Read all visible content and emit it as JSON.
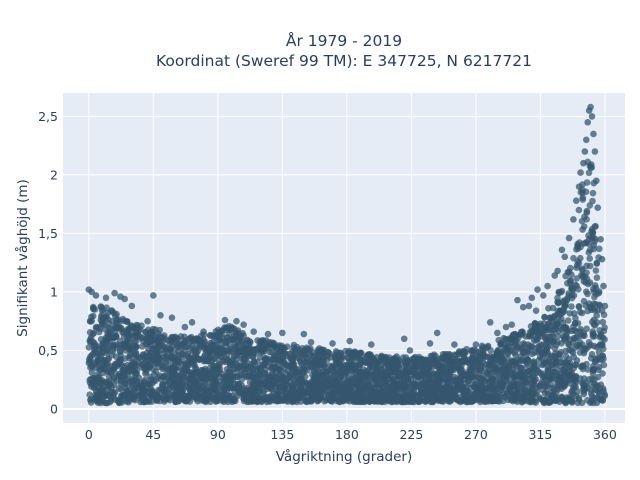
{
  "chart_data": {
    "type": "scatter",
    "title_lines": [
      "År 1979 - 2019",
      "Koordinat (Sweref 99 TM): E 347725, N 6217721"
    ],
    "xlabel": "Vågriktning (grader)",
    "ylabel": "Signifikant våghöjd (m)",
    "xlim": [
      -18,
      374
    ],
    "ylim": [
      -0.12,
      2.7
    ],
    "xticks": [
      0,
      45,
      90,
      135,
      180,
      225,
      270,
      315,
      360
    ],
    "xtick_labels": [
      "0",
      "45",
      "90",
      "135",
      "180",
      "225",
      "270",
      "315",
      "360"
    ],
    "yticks": [
      0,
      0.5,
      1,
      1.5,
      2,
      2.5
    ],
    "ytick_labels": [
      "0",
      "0,5",
      "1",
      "1,5",
      "2",
      "2,5"
    ],
    "grid": true,
    "legend": "none",
    "marker_color": "#34566d",
    "background_color": "#e5ecf6",
    "series": [
      {
        "envelope": {
          "x": [
            0,
            10,
            20,
            30,
            45,
            60,
            75,
            90,
            100,
            110,
            135,
            160,
            180,
            200,
            225,
            245,
            260,
            280,
            300,
            310,
            320,
            330,
            335,
            340,
            345,
            350,
            355,
            358,
            360
          ],
          "y_max": [
            0.95,
            0.88,
            0.82,
            0.75,
            0.7,
            0.62,
            0.62,
            0.68,
            0.72,
            0.62,
            0.56,
            0.52,
            0.5,
            0.46,
            0.44,
            0.47,
            0.5,
            0.56,
            0.66,
            0.72,
            0.85,
            1.05,
            1.25,
            1.6,
            2.05,
            2.2,
            1.6,
            1.1,
            0.7
          ],
          "y_min": [
            0.05,
            0.05,
            0.05,
            0.06,
            0.06,
            0.06,
            0.06,
            0.06,
            0.06,
            0.06,
            0.06,
            0.06,
            0.06,
            0.06,
            0.06,
            0.06,
            0.06,
            0.06,
            0.06,
            0.05,
            0.05,
            0.05,
            0.05,
            0.05,
            0.05,
            0.05,
            0.05,
            0.05,
            0.05
          ]
        },
        "outliers": [
          {
            "x": 0,
            "y": 1.02
          },
          {
            "x": 2,
            "y": 1.0
          },
          {
            "x": 5,
            "y": 0.97
          },
          {
            "x": 12,
            "y": 0.95
          },
          {
            "x": 18,
            "y": 0.99
          },
          {
            "x": 22,
            "y": 0.96
          },
          {
            "x": 25,
            "y": 0.94
          },
          {
            "x": 30,
            "y": 0.88
          },
          {
            "x": 45,
            "y": 0.97
          },
          {
            "x": 41,
            "y": 0.75
          },
          {
            "x": 50,
            "y": 0.8
          },
          {
            "x": 58,
            "y": 0.78
          },
          {
            "x": 67,
            "y": 0.7
          },
          {
            "x": 72,
            "y": 0.74
          },
          {
            "x": 80,
            "y": 0.66
          },
          {
            "x": 95,
            "y": 0.76
          },
          {
            "x": 103,
            "y": 0.75
          },
          {
            "x": 108,
            "y": 0.72
          },
          {
            "x": 115,
            "y": 0.66
          },
          {
            "x": 125,
            "y": 0.64
          },
          {
            "x": 135,
            "y": 0.65
          },
          {
            "x": 150,
            "y": 0.64
          },
          {
            "x": 155,
            "y": 0.57
          },
          {
            "x": 170,
            "y": 0.56
          },
          {
            "x": 182,
            "y": 0.58
          },
          {
            "x": 197,
            "y": 0.55
          },
          {
            "x": 220,
            "y": 0.6
          },
          {
            "x": 224,
            "y": 0.5
          },
          {
            "x": 238,
            "y": 0.56
          },
          {
            "x": 243,
            "y": 0.65
          },
          {
            "x": 255,
            "y": 0.55
          },
          {
            "x": 270,
            "y": 0.55
          },
          {
            "x": 280,
            "y": 0.74
          },
          {
            "x": 285,
            "y": 0.65
          },
          {
            "x": 291,
            "y": 0.7
          },
          {
            "x": 295,
            "y": 0.72
          },
          {
            "x": 299,
            "y": 0.93
          },
          {
            "x": 303,
            "y": 0.87
          },
          {
            "x": 307,
            "y": 0.88
          },
          {
            "x": 309,
            "y": 0.95
          },
          {
            "x": 312,
            "y": 0.84
          },
          {
            "x": 313,
            "y": 1.02
          },
          {
            "x": 317,
            "y": 0.97
          },
          {
            "x": 320,
            "y": 1.05
          },
          {
            "x": 325,
            "y": 1.14
          },
          {
            "x": 327,
            "y": 1.18
          },
          {
            "x": 330,
            "y": 1.36
          },
          {
            "x": 332,
            "y": 1.3
          },
          {
            "x": 335,
            "y": 1.46
          },
          {
            "x": 338,
            "y": 1.62
          },
          {
            "x": 340,
            "y": 1.78
          },
          {
            "x": 342,
            "y": 1.9
          },
          {
            "x": 343,
            "y": 2.02
          },
          {
            "x": 345,
            "y": 2.1
          },
          {
            "x": 346,
            "y": 2.2
          },
          {
            "x": 347,
            "y": 2.3
          },
          {
            "x": 348,
            "y": 2.45
          },
          {
            "x": 349,
            "y": 2.55
          },
          {
            "x": 350,
            "y": 2.58
          },
          {
            "x": 351,
            "y": 2.5
          },
          {
            "x": 352,
            "y": 2.35
          },
          {
            "x": 353,
            "y": 2.2
          },
          {
            "x": 354,
            "y": 1.95
          },
          {
            "x": 355,
            "y": 1.72
          },
          {
            "x": 357,
            "y": 1.45
          },
          {
            "x": 358,
            "y": 1.28
          },
          {
            "x": 359,
            "y": 1.05
          },
          {
            "x": 360,
            "y": 0.88
          }
        ]
      }
    ]
  }
}
